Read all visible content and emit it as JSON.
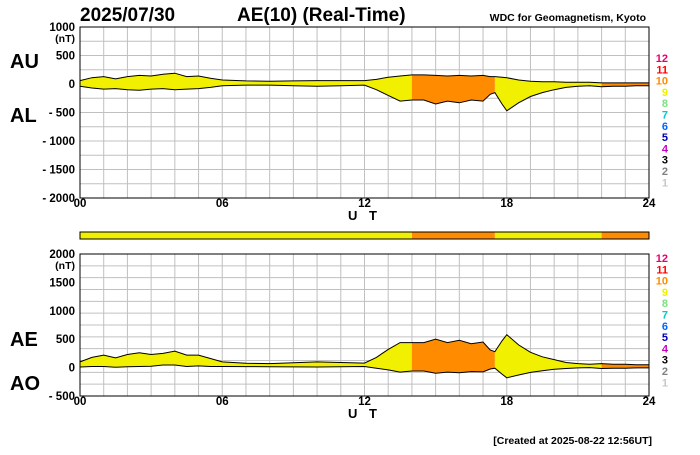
{
  "header": {
    "date": "2025/07/30",
    "title": "AE(10) (Real-Time)",
    "source": "WDC for Geomagnetism, Kyoto"
  },
  "footer": {
    "created": "[Created at 2025-08-22 12:56UT]"
  },
  "level_legend": {
    "levels": [
      "12",
      "11",
      "10",
      "9",
      "8",
      "7",
      "6",
      "5",
      "4",
      "3",
      "2",
      "1"
    ],
    "colors": [
      "#e8006e",
      "#ff0000",
      "#ff8c00",
      "#f0f000",
      "#7fe07f",
      "#00c8c8",
      "#0064ff",
      "#0000b4",
      "#c800c8",
      "#000000",
      "#808080",
      "#c8c8c8"
    ]
  },
  "colors": {
    "active_fill": "#ffee00",
    "storm_fill": "#ff9900",
    "line": "#000000",
    "grid": "#c0c0c0"
  },
  "chart_data": [
    {
      "type": "area",
      "panel": "AU/AL",
      "title": "AE(10) (Real-Time)",
      "upper_label": "AU",
      "lower_label": "AL",
      "xlabel": "U T",
      "ylabel": "(nT)",
      "ylim": [
        -2000,
        1000
      ],
      "xlim": [
        0,
        24
      ],
      "x_ticks": [
        "00",
        "06",
        "12",
        "18",
        "24"
      ],
      "y_ticks": [
        "1000",
        "500",
        "0",
        "- 500",
        "- 1000",
        "- 1500",
        "- 2000"
      ],
      "y_tick_values": [
        1000,
        500,
        0,
        -500,
        -1000,
        -1500,
        -2000
      ],
      "activity_level": [
        {
          "from": 0,
          "to": 14,
          "level": 9
        },
        {
          "from": 14,
          "to": 17.5,
          "level": 10
        },
        {
          "from": 17.5,
          "to": 22,
          "level": 9
        },
        {
          "from": 22,
          "to": 24,
          "level": 10
        }
      ],
      "series": [
        {
          "name": "AU",
          "x": [
            0,
            0.5,
            1,
            1.5,
            2,
            2.5,
            3,
            3.5,
            4,
            4.5,
            5,
            5.5,
            6,
            7,
            8,
            9,
            10,
            11,
            12,
            12.5,
            13,
            13.5,
            14,
            14.5,
            15,
            15.5,
            16,
            16.5,
            17,
            17.3,
            17.5,
            17.8,
            18,
            18.5,
            19,
            19.5,
            20,
            20.5,
            21,
            21.5,
            22,
            22.5,
            23,
            23.5,
            24
          ],
          "values": [
            60,
            110,
            130,
            90,
            130,
            150,
            140,
            170,
            190,
            130,
            140,
            100,
            70,
            55,
            50,
            55,
            60,
            60,
            60,
            80,
            120,
            140,
            160,
            160,
            150,
            140,
            150,
            140,
            150,
            130,
            130,
            120,
            110,
            70,
            50,
            40,
            40,
            30,
            30,
            30,
            20,
            20,
            20,
            20,
            20
          ]
        },
        {
          "name": "AL",
          "x": [
            0,
            0.5,
            1,
            1.5,
            2,
            2.5,
            3,
            3.5,
            4,
            4.5,
            5,
            5.5,
            6,
            7,
            8,
            9,
            10,
            11,
            12,
            12.5,
            13,
            13.5,
            14,
            14.5,
            15,
            15.5,
            16,
            16.5,
            17,
            17.3,
            17.5,
            17.8,
            18,
            18.5,
            19,
            19.5,
            20,
            20.5,
            21,
            21.5,
            22,
            22.5,
            23,
            23.5,
            24
          ],
          "values": [
            -40,
            -70,
            -90,
            -80,
            -100,
            -110,
            -90,
            -80,
            -100,
            -90,
            -80,
            -60,
            -30,
            -20,
            -20,
            -30,
            -40,
            -30,
            -20,
            -100,
            -200,
            -300,
            -280,
            -280,
            -350,
            -300,
            -330,
            -280,
            -300,
            -180,
            -150,
            -350,
            -470,
            -330,
            -220,
            -150,
            -100,
            -60,
            -40,
            -30,
            -50,
            -40,
            -40,
            -30,
            -30
          ]
        }
      ]
    },
    {
      "type": "area",
      "panel": "AE/AO",
      "upper_label": "AE",
      "lower_label": "AO",
      "xlabel": "U T",
      "ylabel": "(nT)",
      "ylim": [
        -500,
        2000
      ],
      "xlim": [
        0,
        24
      ],
      "x_ticks": [
        "00",
        "06",
        "12",
        "18",
        "24"
      ],
      "y_ticks": [
        "2000",
        "1500",
        "1000",
        "500",
        "0",
        "- 500"
      ],
      "y_tick_values": [
        2000,
        1500,
        1000,
        500,
        0,
        -500
      ],
      "series": [
        {
          "name": "AE",
          "x": [
            0,
            0.5,
            1,
            1.5,
            2,
            2.5,
            3,
            3.5,
            4,
            4.5,
            5,
            5.5,
            6,
            7,
            8,
            9,
            10,
            11,
            12,
            12.5,
            13,
            13.5,
            14,
            14.5,
            15,
            15.5,
            16,
            16.5,
            17,
            17.3,
            17.5,
            17.8,
            18,
            18.5,
            19,
            19.5,
            20,
            20.5,
            21,
            21.5,
            22,
            22.5,
            23,
            23.5,
            24
          ],
          "values": [
            100,
            180,
            220,
            170,
            230,
            260,
            230,
            250,
            290,
            220,
            220,
            160,
            100,
            75,
            70,
            85,
            100,
            90,
            80,
            180,
            320,
            440,
            440,
            440,
            500,
            440,
            480,
            420,
            450,
            310,
            280,
            470,
            580,
            400,
            270,
            190,
            140,
            90,
            70,
            60,
            70,
            60,
            60,
            50,
            50
          ]
        },
        {
          "name": "AO",
          "x": [
            0,
            0.5,
            1,
            1.5,
            2,
            2.5,
            3,
            3.5,
            4,
            4.5,
            5,
            5.5,
            6,
            7,
            8,
            9,
            10,
            11,
            12,
            12.5,
            13,
            13.5,
            14,
            14.5,
            15,
            15.5,
            16,
            16.5,
            17,
            17.3,
            17.5,
            17.8,
            18,
            18.5,
            19,
            19.5,
            20,
            20.5,
            21,
            21.5,
            22,
            22.5,
            23,
            23.5,
            24
          ],
          "values": [
            10,
            20,
            20,
            5,
            15,
            20,
            25,
            45,
            45,
            20,
            30,
            20,
            20,
            18,
            15,
            12,
            10,
            15,
            20,
            -10,
            -40,
            -80,
            -60,
            -60,
            -100,
            -80,
            -90,
            -70,
            -75,
            -25,
            -10,
            -115,
            -180,
            -130,
            -85,
            -55,
            -30,
            -15,
            -5,
            0,
            -15,
            -10,
            -10,
            -5,
            -5
          ]
        }
      ]
    }
  ]
}
